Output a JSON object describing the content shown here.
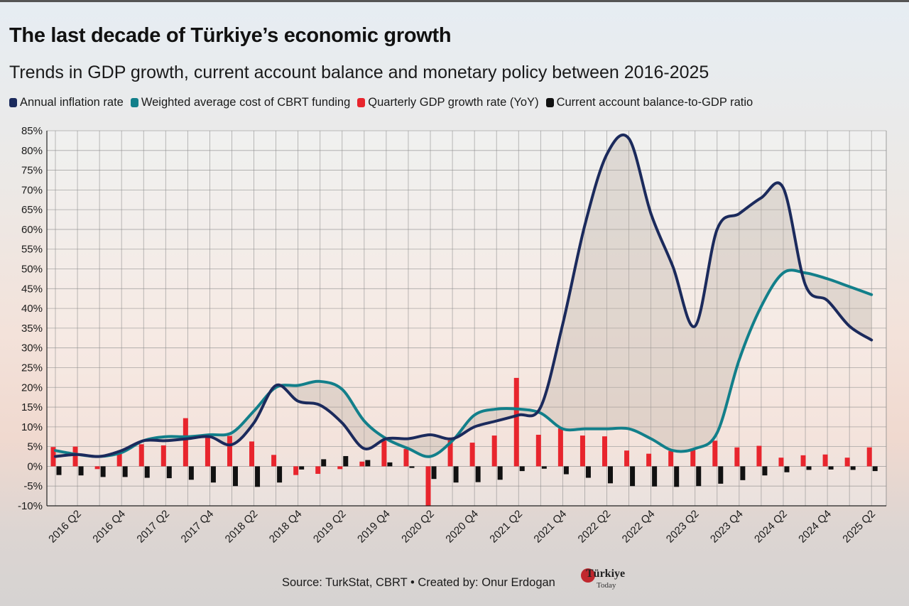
{
  "header": {
    "title": "The last decade of Türkiye’s economic growth",
    "subtitle": "Trends in GDP growth, current account balance and monetary policy between 2016-2025"
  },
  "legend": [
    {
      "label": "Annual inflation rate",
      "color": "#1b2a5c"
    },
    {
      "label": "Weighted average cost of CBRT funding",
      "color": "#127f8a"
    },
    {
      "label": "Quarterly GDP growth rate (YoY)",
      "color": "#e8252d"
    },
    {
      "label": "Current account balance-to-GDP ratio",
      "color": "#111111"
    }
  ],
  "footer": {
    "source": "Source: TurkStat, CBRT • Created by: Onur Erdogan",
    "logo_text": "Türkiye",
    "logo_sub": "Today"
  },
  "chart_data": {
    "type": "line",
    "title": "The last decade of Türkiye’s economic growth",
    "xlabel": "",
    "ylabel": "",
    "ylim": [
      -10,
      85
    ],
    "y_ticks": [
      -10,
      -5,
      0,
      5,
      10,
      15,
      20,
      25,
      30,
      35,
      40,
      45,
      50,
      55,
      60,
      65,
      70,
      75,
      80,
      85
    ],
    "y_tick_suffix": "%",
    "grid": true,
    "legend_position": "top",
    "x_tick_labels": [
      "2016 Q2",
      "2016 Q4",
      "2017 Q2",
      "2017 Q4",
      "2018 Q2",
      "2018 Q4",
      "2019 Q2",
      "2019 Q4",
      "2020 Q2",
      "2020 Q4",
      "2021 Q2",
      "2021 Q4",
      "2022 Q2",
      "2022 Q4",
      "2023 Q2",
      "2023 Q4",
      "2024 Q2",
      "2024 Q4",
      "2025 Q2"
    ],
    "categories": [
      "2016 Q1",
      "2016 Q2",
      "2016 Q3",
      "2016 Q4",
      "2017 Q1",
      "2017 Q2",
      "2017 Q3",
      "2017 Q4",
      "2018 Q1",
      "2018 Q2",
      "2018 Q3",
      "2018 Q4",
      "2019 Q1",
      "2019 Q2",
      "2019 Q3",
      "2019 Q4",
      "2020 Q1",
      "2020 Q2",
      "2020 Q3",
      "2020 Q4",
      "2021 Q1",
      "2021 Q2",
      "2021 Q3",
      "2021 Q4",
      "2022 Q1",
      "2022 Q2",
      "2022 Q3",
      "2022 Q4",
      "2023 Q1",
      "2023 Q2",
      "2023 Q3",
      "2023 Q4",
      "2024 Q1",
      "2024 Q2",
      "2024 Q3",
      "2024 Q4",
      "2025 Q1",
      "2025 Q2"
    ],
    "series": [
      {
        "name": "Annual inflation rate",
        "kind": "line",
        "color": "#1b2a5c",
        "values": [
          2.5,
          3.0,
          2.5,
          4.0,
          6.5,
          6.5,
          7.0,
          7.5,
          5.5,
          11.0,
          20.5,
          16.5,
          15.5,
          11.0,
          4.5,
          7.0,
          7.0,
          8.0,
          7.0,
          10.0,
          11.5,
          13.0,
          15.0,
          36.0,
          61.0,
          79.0,
          83.0,
          64.0,
          50.5,
          35.5,
          60.0,
          64.0,
          68.0,
          70.5,
          46.0,
          42.0,
          35.5,
          32.0
        ]
      },
      {
        "name": "Weighted average cost of CBRT funding",
        "kind": "line",
        "color": "#127f8a",
        "values": [
          4.0,
          3.0,
          2.5,
          3.5,
          6.5,
          7.5,
          7.5,
          8.0,
          8.5,
          14.0,
          20.0,
          20.5,
          21.5,
          19.5,
          11.5,
          7.0,
          4.5,
          2.5,
          6.5,
          13.0,
          14.5,
          14.5,
          13.5,
          9.5,
          9.5,
          9.5,
          9.5,
          7.0,
          4.0,
          4.5,
          8.5,
          27.0,
          40.5,
          49.0,
          49.0,
          47.5,
          45.5,
          43.5
        ]
      },
      {
        "name": "Quarterly GDP growth rate (YoY)",
        "kind": "bar",
        "color": "#e8252d",
        "values": [
          4.9,
          5.0,
          -0.7,
          4.0,
          5.6,
          5.3,
          12.2,
          7.4,
          7.7,
          6.3,
          2.9,
          -2.2,
          -1.9,
          -0.7,
          1.2,
          6.5,
          4.4,
          -10.1,
          6.6,
          6.0,
          7.8,
          22.4,
          8.0,
          9.6,
          7.8,
          7.6,
          4.0,
          3.2,
          3.9,
          4.5,
          6.5,
          4.8,
          5.2,
          2.2,
          2.8,
          3.0,
          2.2,
          4.8
        ]
      },
      {
        "name": "Current account balance-to-GDP ratio",
        "kind": "bar",
        "color": "#111111",
        "values": [
          -2.2,
          -2.3,
          -2.7,
          -2.7,
          -2.9,
          -3.0,
          -3.4,
          -4.1,
          -5.0,
          -5.2,
          -4.1,
          -0.8,
          1.8,
          2.6,
          1.6,
          1.0,
          -0.4,
          -3.2,
          -4.1,
          -4.0,
          -3.4,
          -1.2,
          -0.6,
          -2.0,
          -2.9,
          -4.3,
          -5.0,
          -5.1,
          -5.2,
          -5.0,
          -4.4,
          -3.5,
          -2.3,
          -1.5,
          -0.9,
          -0.8,
          -0.9,
          -1.2
        ]
      }
    ]
  }
}
